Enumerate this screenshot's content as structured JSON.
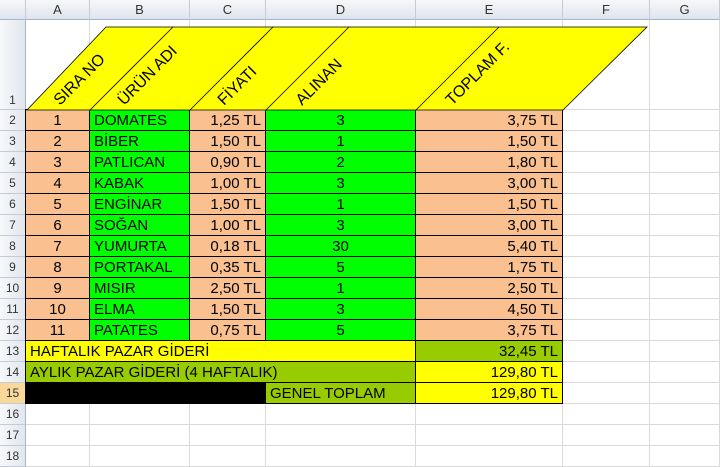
{
  "columns": [
    "A",
    "B",
    "C",
    "D",
    "E",
    "F",
    "G"
  ],
  "rows": [
    "1",
    "2",
    "3",
    "4",
    "5",
    "6",
    "7",
    "8",
    "9",
    "10",
    "11",
    "12",
    "13",
    "14",
    "15",
    "16",
    "17",
    "18"
  ],
  "selected_row": "15",
  "colors": {
    "peach": "#FAC090",
    "green": "#00FF00",
    "yellow": "#FFFF00",
    "olive": "#99CC00",
    "black": "#000000"
  },
  "headers": [
    "SIRA NO",
    "ÜRÜN ADI",
    "FİYATI",
    "ALINAN",
    "TOPLAM F."
  ],
  "items": [
    [
      "1",
      "DOMATES",
      "1,25 TL",
      "3",
      "3,75 TL"
    ],
    [
      "2",
      "BİBER",
      "1,50 TL",
      "1",
      "1,50 TL"
    ],
    [
      "3",
      "PATLICAN",
      "0,90 TL",
      "2",
      "1,80 TL"
    ],
    [
      "4",
      "KABAK",
      "1,00 TL",
      "3",
      "3,00 TL"
    ],
    [
      "5",
      "ENGİNAR",
      "1,50 TL",
      "1",
      "1,50 TL"
    ],
    [
      "6",
      "SOĞAN",
      "1,00 TL",
      "3",
      "3,00 TL"
    ],
    [
      "7",
      "YUMURTA",
      "0,18 TL",
      "30",
      "5,40 TL"
    ],
    [
      "8",
      "PORTAKAL",
      "0,35 TL",
      "5",
      "1,75 TL"
    ],
    [
      "9",
      "MISIR",
      "2,50 TL",
      "1",
      "2,50 TL"
    ],
    [
      "10",
      "ELMA",
      "1,50 TL",
      "3",
      "4,50 TL"
    ],
    [
      "11",
      "PATATES",
      "0,75 TL",
      "5",
      "3,75 TL"
    ]
  ],
  "summary": {
    "weekly_label": "HAFTALIK PAZAR GİDERİ",
    "weekly_value": "32,45 TL",
    "monthly_label": "AYLIK PAZAR GİDERİ (4 HAFTALIK)",
    "monthly_value": "129,80 TL",
    "total_label": "GENEL TOPLAM",
    "total_value": "129,80 TL"
  }
}
